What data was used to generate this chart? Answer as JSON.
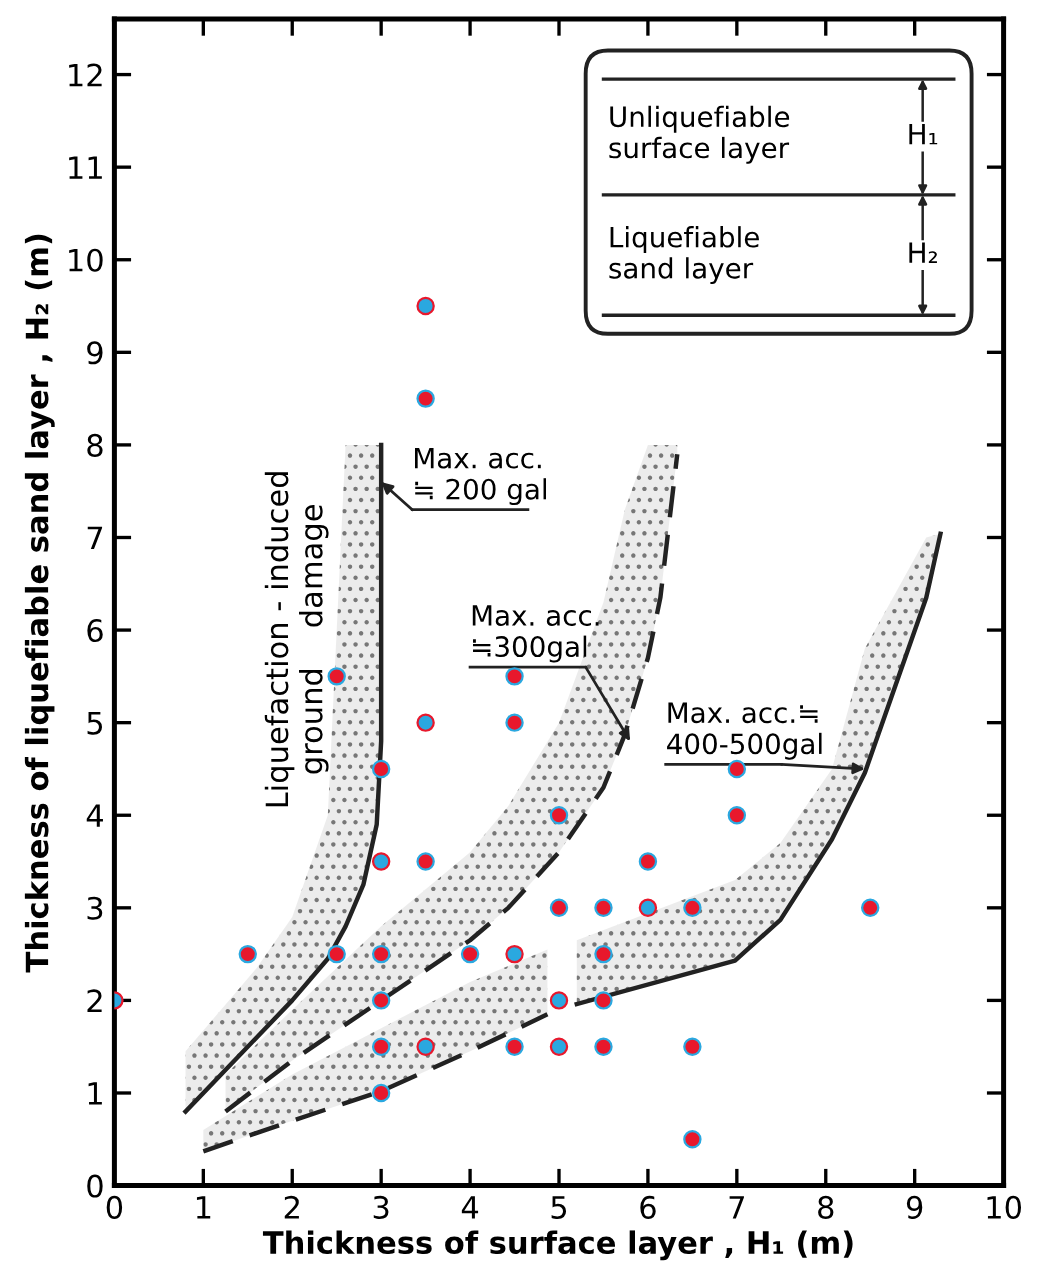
{
  "chart_data": {
    "type": "scatter",
    "xlabel": "Thickness of surface layer , H₁ (m)",
    "ylabel": "Thickness of liquefiable sand layer , H₂ (m)",
    "xlim": [
      0,
      10
    ],
    "ylim": [
      0,
      12.6
    ],
    "xticks": [
      0,
      1,
      2,
      3,
      4,
      5,
      6,
      7,
      8,
      9,
      10
    ],
    "yticks": [
      0,
      1,
      2,
      3,
      4,
      5,
      6,
      7,
      8,
      9,
      10,
      11,
      12
    ],
    "tick_labels": [
      "x",
      "y"
    ],
    "grid": false,
    "legend": false,
    "series": [
      {
        "marker": "circle",
        "color": "#e8182c",
        "x": [
          1.5,
          2.5,
          2.5,
          3,
          3,
          3,
          3,
          3,
          3.5,
          3.5,
          4,
          4.5,
          4.5,
          4.5,
          5,
          5,
          5.5,
          5.5,
          5.5,
          5.5,
          6,
          6.5,
          6.5,
          6.5,
          7,
          7,
          8.5
        ],
        "values": [
          2.5,
          5.5,
          2.5,
          4.5,
          2.5,
          2,
          1.5,
          1,
          8.5,
          3.5,
          2.5,
          5.5,
          5,
          1.5,
          4,
          3,
          3,
          2.5,
          2,
          1.5,
          3.5,
          3,
          1.5,
          0.5,
          4.5,
          4,
          3
        ]
      },
      {
        "marker": "circle",
        "color": "#2aa8e0",
        "x": [
          0,
          3,
          3.5,
          3.5,
          3.5,
          4.5,
          5,
          5,
          6
        ],
        "values": [
          2,
          3.5,
          5,
          1.5,
          9.5,
          2.5,
          2,
          1.5,
          3
        ]
      },
      {
        "type": "line",
        "color": "#222222",
        "line_style": "solid",
        "x": [
          0.8,
          1.2,
          1.6,
          2,
          2.4,
          2.6,
          2.8,
          2.95,
          3,
          3
        ],
        "values": [
          0.8,
          1.2,
          1.6,
          2.0,
          2.45,
          2.8,
          3.25,
          3.9,
          4.8,
          8
        ],
        "lower": [
          0.8,
          1.2,
          1.6,
          2.0,
          2.45,
          2.8,
          3.25,
          3.9,
          4.8,
          8
        ],
        "upper": [
          1.45,
          1.9,
          2.35,
          2.9,
          4.0,
          8,
          8,
          8,
          8,
          8
        ]
      },
      {
        "type": "line",
        "color": "#222222",
        "line_style": "dashed",
        "x": [
          1.25,
          2,
          3,
          4,
          4.43,
          5,
          5.5,
          5.74,
          6.0,
          6.14,
          6.33
        ],
        "values": [
          0.8,
          1.35,
          2.0,
          2.65,
          3.0,
          3.6,
          4.3,
          4.87,
          5.7,
          6.35,
          7.9
        ],
        "lower": [
          0.8,
          1.35,
          2.0,
          2.65,
          3.0,
          3.6,
          4.3,
          4.87,
          5.7,
          6.35,
          7.9
        ],
        "upper": [
          1.2,
          1.9,
          2.8,
          3.6,
          4.1,
          5.0,
          6.3,
          7.3,
          8,
          8,
          8
        ]
      },
      {
        "type": "line",
        "color": "#222222",
        "line_style": "dashed",
        "x": [
          1,
          2,
          3,
          4,
          4.87
        ],
        "values": [
          0.37,
          0.7,
          1.02,
          1.45,
          1.85
        ],
        "lower": [
          0.37,
          0.7,
          1.02,
          1.45,
          1.85
        ],
        "upper": [
          0.6,
          1.2,
          1.7,
          2.2,
          2.55
        ]
      },
      {
        "type": "line",
        "color": "#222222",
        "line_style": "solid",
        "x": [
          5.2,
          6.98,
          7.49,
          8.07,
          8.44,
          9.13,
          9.29
        ],
        "values": [
          1.96,
          2.43,
          2.87,
          3.74,
          4.46,
          6.35,
          7.04
        ],
        "lower": [
          1.96,
          2.43,
          2.87,
          3.74,
          4.46,
          6.35,
          7.04
        ],
        "upper": [
          2.65,
          3.3,
          3.7,
          4.5,
          5.8,
          7.0,
          7.04
        ]
      }
    ],
    "annotations": [
      {
        "text": "Max. acc.\n≒ 200 gal",
        "x": 3,
        "y": 7.6
      },
      {
        "text": "Max. acc.\n≒300gal",
        "x": 5.8,
        "y": 4.8
      },
      {
        "text": "Max. acc.≒\n400-500gal",
        "x": 8.44,
        "y": 4.5
      },
      "Liquefaction - induced\nground    damage",
      "Unliquefiable\nsurface layer",
      "H₁",
      "Liquefiable\nsand layer",
      "H₂"
    ]
  }
}
